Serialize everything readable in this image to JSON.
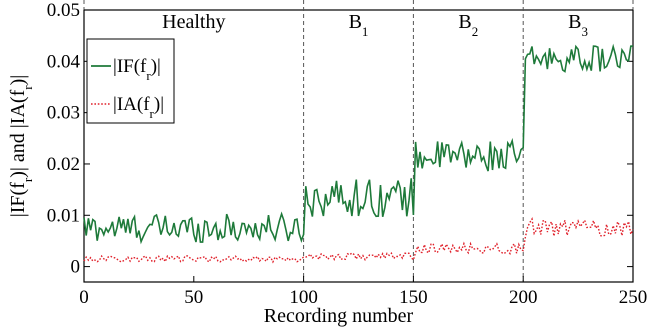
{
  "chart_data": {
    "type": "line",
    "xlabel": "Recording number",
    "ylabel": "|IF(f_r)| and |IA(f_r)|",
    "xlim": [
      0,
      250
    ],
    "ylim": [
      -0.003,
      0.05
    ],
    "x_ticks": [
      "0",
      "50",
      "100",
      "150",
      "200",
      "250"
    ],
    "y_ticks": [
      "0",
      "0.01",
      "0.02",
      "0.03",
      "0.04",
      "0.05"
    ],
    "grid": false,
    "legend_position": "top-left",
    "regions": [
      {
        "label": "Healthy",
        "x_start": 0,
        "x_end": 100
      },
      {
        "label": "B1",
        "x_start": 100,
        "x_end": 150
      },
      {
        "label": "B2",
        "x_start": 150,
        "x_end": 200
      },
      {
        "label": "B3",
        "x_start": 200,
        "x_end": 250
      }
    ],
    "series": [
      {
        "name": "|IF(f_r)|",
        "color": "#1e7a3a",
        "style": "solid",
        "segments": [
          {
            "x_start": 0,
            "x_end": 100,
            "mean": 0.0075,
            "spread": 0.0028
          },
          {
            "x_start": 100,
            "x_end": 150,
            "mean": 0.0135,
            "spread": 0.0038
          },
          {
            "x_start": 150,
            "x_end": 200,
            "mean": 0.0215,
            "spread": 0.003
          },
          {
            "x_start": 200,
            "x_end": 250,
            "mean": 0.0405,
            "spread": 0.0025
          }
        ]
      },
      {
        "name": "|IA(f_r)|",
        "color": "#e0202a",
        "style": "dotted",
        "segments": [
          {
            "x_start": 0,
            "x_end": 100,
            "mean": 0.0015,
            "spread": 0.0006
          },
          {
            "x_start": 100,
            "x_end": 150,
            "mean": 0.002,
            "spread": 0.0007
          },
          {
            "x_start": 150,
            "x_end": 200,
            "mean": 0.0035,
            "spread": 0.001
          },
          {
            "x_start": 200,
            "x_end": 250,
            "mean": 0.0075,
            "spread": 0.0018
          }
        ]
      }
    ]
  }
}
